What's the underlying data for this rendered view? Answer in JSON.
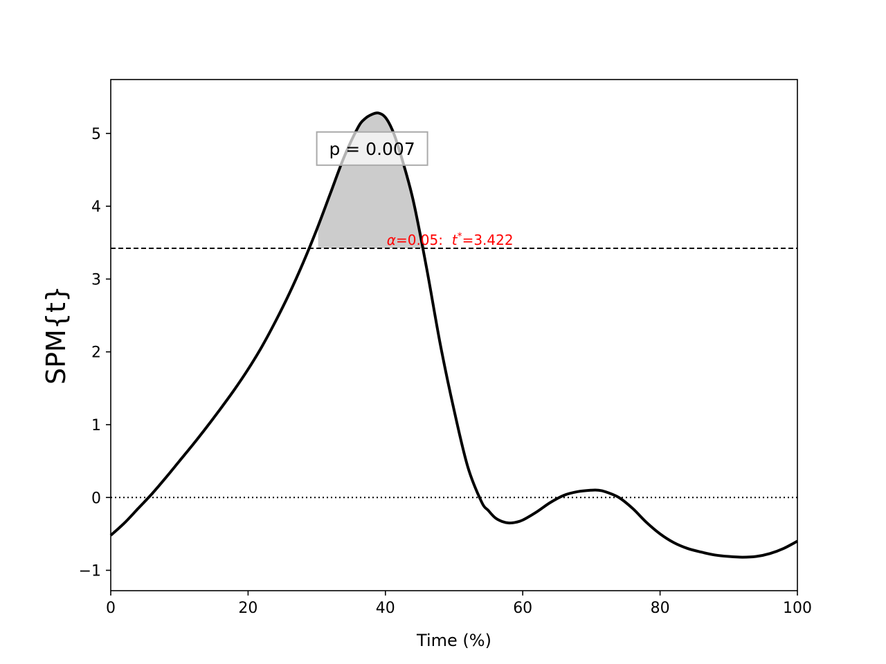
{
  "chart_data": {
    "type": "line",
    "title": "",
    "xlabel": "Time (%)",
    "ylabel": "SPM{t}",
    "xlim": [
      0,
      100
    ],
    "ylim": [
      -1.28,
      5.74
    ],
    "xticks": [
      0,
      20,
      40,
      60,
      80,
      100
    ],
    "xtick_labels": [
      "0",
      "20",
      "40",
      "60",
      "80",
      "100"
    ],
    "yticks": [
      -1,
      0,
      1,
      2,
      3,
      4,
      5
    ],
    "ytick_labels": [
      "−1",
      "0",
      "1",
      "2",
      "3",
      "4",
      "5"
    ],
    "grid": false,
    "threshold": {
      "value": 3.422,
      "alpha_symbol": "α",
      "alpha_text": "=0.05:  ",
      "t_symbol": "t",
      "t_sup": "*",
      "t_text": "=3.422",
      "color": "#ff0000"
    },
    "zero_line": 0,
    "cluster": {
      "x_start": 30.2,
      "x_end": 45.8,
      "p_label": "p = 0.007",
      "fill_color": "#cccccc"
    },
    "series": [
      {
        "color": "#000000",
        "x": [
          0,
          2,
          4,
          6,
          8,
          10,
          12,
          14,
          16,
          18,
          20,
          22,
          24,
          26,
          28,
          30,
          32,
          34,
          36,
          37,
          38,
          39,
          40,
          41,
          42,
          44,
          46,
          48,
          50,
          52,
          54,
          55,
          56,
          57,
          58,
          59,
          60,
          62,
          64,
          66,
          68,
          70,
          71,
          72,
          74,
          76,
          78,
          80,
          82,
          84,
          86,
          88,
          90,
          92,
          94,
          96,
          98,
          100
        ],
        "y": [
          -0.52,
          -0.35,
          -0.15,
          0.05,
          0.27,
          0.5,
          0.73,
          0.97,
          1.22,
          1.48,
          1.76,
          2.07,
          2.42,
          2.8,
          3.22,
          3.68,
          4.18,
          4.68,
          5.08,
          5.2,
          5.26,
          5.28,
          5.22,
          5.05,
          4.78,
          4.1,
          3.15,
          2.1,
          1.2,
          0.42,
          -0.06,
          -0.18,
          -0.28,
          -0.33,
          -0.35,
          -0.34,
          -0.31,
          -0.2,
          -0.07,
          0.03,
          0.08,
          0.1,
          0.1,
          0.08,
          0.0,
          -0.15,
          -0.34,
          -0.5,
          -0.62,
          -0.7,
          -0.75,
          -0.79,
          -0.81,
          -0.82,
          -0.81,
          -0.77,
          -0.7,
          -0.6
        ]
      }
    ]
  }
}
